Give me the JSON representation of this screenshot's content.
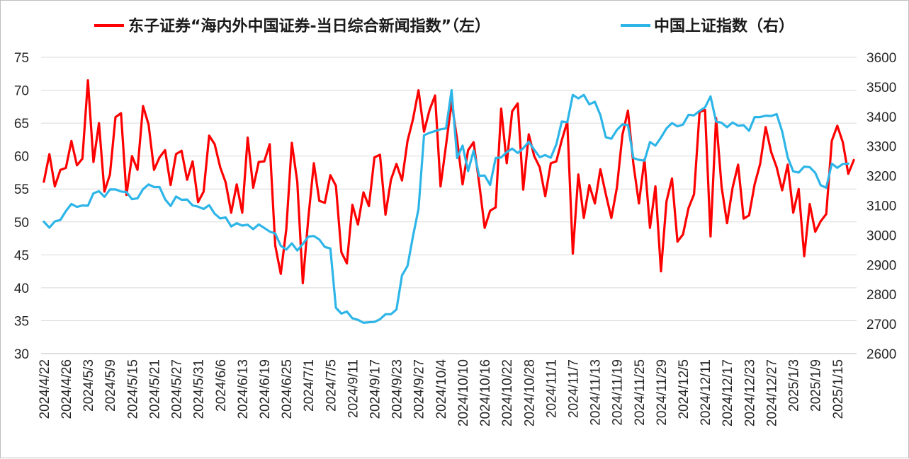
{
  "chart_data": {
    "type": "line",
    "legend_position": "top",
    "grid": "horizontal",
    "y_left_lim": [
      30,
      75
    ],
    "y_right_lim": [
      2600,
      3600
    ],
    "y_left_ticks": [
      "30",
      "35",
      "40",
      "45",
      "50",
      "55",
      "60",
      "65",
      "70",
      "75"
    ],
    "y_right_ticks": [
      "2600",
      "2700",
      "2800",
      "2900",
      "3000",
      "3100",
      "3200",
      "3300",
      "3400",
      "3500",
      "3600"
    ],
    "x_tick_labels": [
      "2024/4/22",
      "2024/4/26",
      "2024/5/3",
      "2024/5/9",
      "2024/5/15",
      "2024/5/21",
      "2024/5/27",
      "2024/5/31",
      "2024/6/6",
      "2024/6/13",
      "2024/6/19",
      "2024/6/25",
      "2024/7/1",
      "2024/7/5",
      "2024/9/11",
      "2024/9/17",
      "2024/9/23",
      "2024/9/27",
      "2024/10/4",
      "2024/10/10",
      "2024/10/16",
      "2024/10/22",
      "2024/10/28",
      "2024/11/1",
      "2024/11/7",
      "2024/11/13",
      "2024/11/19",
      "2024/11/25",
      "2024/11/29",
      "2024/12/5",
      "2024/12/11",
      "2024/12/17",
      "2024/12/23",
      "2024/12/27",
      "2025/1/3",
      "2025/1/9",
      "2025/1/15"
    ],
    "series": [
      {
        "name": "东子证券“海内外中国证券-当日综合新闻指数”（左）",
        "axis": "left",
        "color": "#ff0000",
        "values": [
          56.1,
          60.3,
          55.4,
          57.9,
          58.2,
          62.3,
          58.6,
          59.6,
          71.5,
          59.1,
          65,
          54.6,
          57.2,
          65.9,
          66.5,
          54.1,
          60,
          57.9,
          67.6,
          64.8,
          57.9,
          59.8,
          60.9,
          55.6,
          60.3,
          60.8,
          56.4,
          59.2,
          53,
          54.6,
          63.1,
          61.8,
          58.3,
          56,
          51.4,
          55.7,
          51.4,
          62.8,
          55.2,
          59.1,
          59.2,
          61.8,
          46.4,
          42.1,
          48.9,
          62,
          56.1,
          40.7,
          50.6,
          58.9,
          53.2,
          52.9,
          57.1,
          55.5,
          45.4,
          43.7,
          52.6,
          49.6,
          54.5,
          52.4,
          59.8,
          60.2,
          51.1,
          56.4,
          58.8,
          56.3,
          62.3,
          65.6,
          70,
          63.7,
          67,
          69.2,
          55.4,
          61.7,
          68.2,
          62.5,
          55.7,
          60.9,
          62.1,
          55.9,
          49.1,
          51.7,
          52.2,
          67.2,
          58.9,
          66.8,
          68,
          54.9,
          63.3,
          60,
          58.3,
          53.9,
          58.9,
          59.2,
          62.4,
          65.2,
          45.2,
          57.2,
          50.6,
          55.6,
          52.8,
          58,
          54.2,
          50.6,
          55.2,
          63.2,
          66.9,
          58.8,
          52.8,
          59.5,
          49.1,
          55.4,
          42.5,
          53.1,
          56.6,
          47,
          48.1,
          52.1,
          54.2,
          66.7,
          67,
          47.8,
          65.8,
          55.3,
          49.8,
          55.2,
          58.7,
          50.5,
          51,
          55.7,
          58.8,
          64.4,
          60.6,
          58.3,
          54.8,
          58.7,
          51.4,
          55,
          44.8,
          52.7,
          48.5,
          50.1,
          51.2,
          62.3,
          64.6,
          62.1,
          57.3,
          59.4
        ]
      },
      {
        "name": "中国上证指数（右）",
        "axis": "right",
        "color": "#2eb5e8",
        "values": [
          3045,
          3025,
          3046,
          3051,
          3081,
          3105,
          3095,
          3100,
          3099,
          3141,
          3148,
          3129,
          3154,
          3154,
          3147,
          3145,
          3121,
          3124,
          3155,
          3171,
          3162,
          3162,
          3121,
          3098,
          3130,
          3119,
          3120,
          3100,
          3096,
          3088,
          3101,
          3072,
          3056,
          3060,
          3029,
          3040,
          3032,
          3035,
          3020,
          3036,
          3024,
          3012,
          3005,
          2964,
          2951,
          2972,
          2948,
          2970,
          2995,
          2997,
          2985,
          2960,
          2955,
          2755,
          2735,
          2742,
          2719,
          2714,
          2704,
          2706,
          2707,
          2716,
          2733,
          2733,
          2749,
          2864,
          2896,
          2996,
          3088,
          3337,
          3345,
          3351,
          3357,
          3360,
          3489,
          3260,
          3302,
          3216,
          3285,
          3200,
          3201,
          3169,
          3260,
          3262,
          3280,
          3292,
          3277,
          3293,
          3315,
          3288,
          3263,
          3270,
          3261,
          3306,
          3383,
          3381,
          3473,
          3461,
          3473,
          3441,
          3450,
          3405,
          3330,
          3325,
          3355,
          3374,
          3371,
          3260,
          3254,
          3251,
          3314,
          3302,
          3329,
          3360,
          3378,
          3367,
          3373,
          3406,
          3404,
          3419,
          3431,
          3468,
          3383,
          3379,
          3364,
          3380,
          3369,
          3371,
          3352,
          3398,
          3398,
          3403,
          3402,
          3408,
          3350,
          3262,
          3215,
          3211,
          3231,
          3229,
          3210,
          3168,
          3160,
          3241,
          3227,
          3240,
          3241
        ]
      }
    ]
  }
}
